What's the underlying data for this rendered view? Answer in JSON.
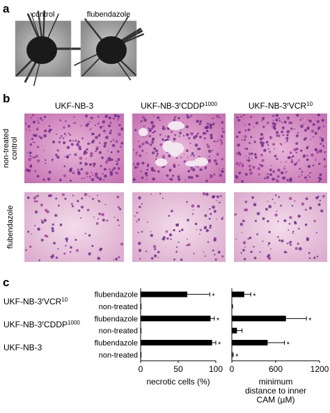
{
  "figure": {
    "panel_a": {
      "label": "a",
      "captions": [
        "control",
        "flubendazole"
      ]
    },
    "panel_b": {
      "label": "b",
      "columns": [
        {
          "parts": [
            {
              "text": "UKF-NB-3",
              "sup": false
            }
          ]
        },
        {
          "parts": [
            {
              "text": "UKF-NB-3",
              "sup": false
            },
            {
              "text": "r",
              "sup": true
            },
            {
              "text": "CDDP",
              "sup": false
            },
            {
              "text": "1000",
              "sup": true
            }
          ]
        },
        {
          "parts": [
            {
              "text": "UKF-NB-3",
              "sup": false
            },
            {
              "text": "r",
              "sup": true
            },
            {
              "text": "VCR",
              "sup": false
            },
            {
              "text": "10",
              "sup": true
            }
          ]
        }
      ],
      "rows": [
        [
          "non-treated",
          "control"
        ],
        [
          "flubendazole"
        ]
      ]
    },
    "panel_c": {
      "label": "c",
      "cell_lines": [
        {
          "parts": [
            {
              "text": "UKF-NB-3",
              "sup": false
            },
            {
              "text": "r",
              "sup": true
            },
            {
              "text": "VCR",
              "sup": false
            },
            {
              "text": "10",
              "sup": true
            }
          ]
        },
        {
          "parts": [
            {
              "text": "UKF-NB-3",
              "sup": false
            },
            {
              "text": "r",
              "sup": true
            },
            {
              "text": "CDDP",
              "sup": false
            },
            {
              "text": "1000",
              "sup": true
            }
          ]
        },
        {
          "parts": [
            {
              "text": "UKF-NB-3",
              "sup": false
            }
          ]
        }
      ]
    }
  },
  "chart_data": [
    {
      "type": "bar",
      "orientation": "horizontal",
      "xlabel": "necrotic cells (%)",
      "categories": [
        "flubendazole",
        "non-treated",
        "flubendazole",
        "non-treated",
        "flubendazole",
        "non-treated"
      ],
      "values": [
        62,
        1,
        93,
        1,
        95,
        1
      ],
      "errors": [
        30,
        0,
        5,
        0,
        5,
        0
      ],
      "annotations": [
        "*",
        null,
        "*",
        null,
        "*",
        null
      ],
      "color": "#000000",
      "xlim": [
        0,
        100
      ],
      "xticks": [
        0,
        50,
        100
      ]
    },
    {
      "type": "bar",
      "orientation": "horizontal",
      "xlabel": [
        "minimum",
        "distance to inner",
        "CAM (µM)"
      ],
      "categories": [
        null,
        null,
        null,
        null,
        null,
        null
      ],
      "values": [
        170,
        5,
        740,
        70,
        490,
        10
      ],
      "errors": [
        90,
        5,
        280,
        70,
        230,
        10
      ],
      "annotations": [
        "*",
        null,
        "*",
        null,
        "*",
        "*"
      ],
      "color": "#000000",
      "xlim": [
        0,
        1200
      ],
      "xticks": [
        0,
        600,
        1200
      ]
    }
  ]
}
